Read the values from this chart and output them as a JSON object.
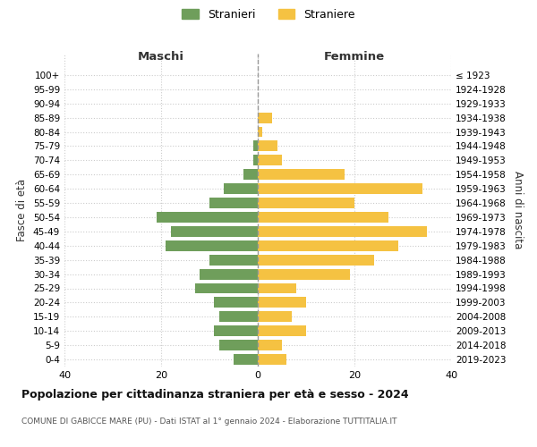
{
  "age_groups": [
    "0-4",
    "5-9",
    "10-14",
    "15-19",
    "20-24",
    "25-29",
    "30-34",
    "35-39",
    "40-44",
    "45-49",
    "50-54",
    "55-59",
    "60-64",
    "65-69",
    "70-74",
    "75-79",
    "80-84",
    "85-89",
    "90-94",
    "95-99",
    "100+"
  ],
  "birth_years": [
    "2019-2023",
    "2014-2018",
    "2009-2013",
    "2004-2008",
    "1999-2003",
    "1994-1998",
    "1989-1993",
    "1984-1988",
    "1979-1983",
    "1974-1978",
    "1969-1973",
    "1964-1968",
    "1959-1963",
    "1954-1958",
    "1949-1953",
    "1944-1948",
    "1939-1943",
    "1934-1938",
    "1929-1933",
    "1924-1928",
    "≤ 1923"
  ],
  "maschi": [
    5,
    8,
    9,
    8,
    9,
    13,
    12,
    10,
    19,
    18,
    21,
    10,
    7,
    3,
    1,
    1,
    0,
    0,
    0,
    0,
    0
  ],
  "femmine": [
    6,
    5,
    10,
    7,
    10,
    8,
    19,
    24,
    29,
    35,
    27,
    20,
    34,
    18,
    5,
    4,
    1,
    3,
    0,
    0,
    0
  ],
  "color_maschi": "#6f9e5b",
  "color_femmine": "#f5c242",
  "title": "Popolazione per cittadinanza straniera per età e sesso - 2024",
  "subtitle": "COMUNE DI GABICCE MARE (PU) - Dati ISTAT al 1° gennaio 2024 - Elaborazione TUTTITALIA.IT",
  "xlabel_left": "Maschi",
  "xlabel_right": "Femmine",
  "ylabel": "Fasce di età",
  "ylabel_right": "Anni di nascita",
  "legend_maschi": "Stranieri",
  "legend_femmine": "Straniere",
  "xlim": 40,
  "background_color": "#ffffff",
  "grid_color": "#cccccc"
}
